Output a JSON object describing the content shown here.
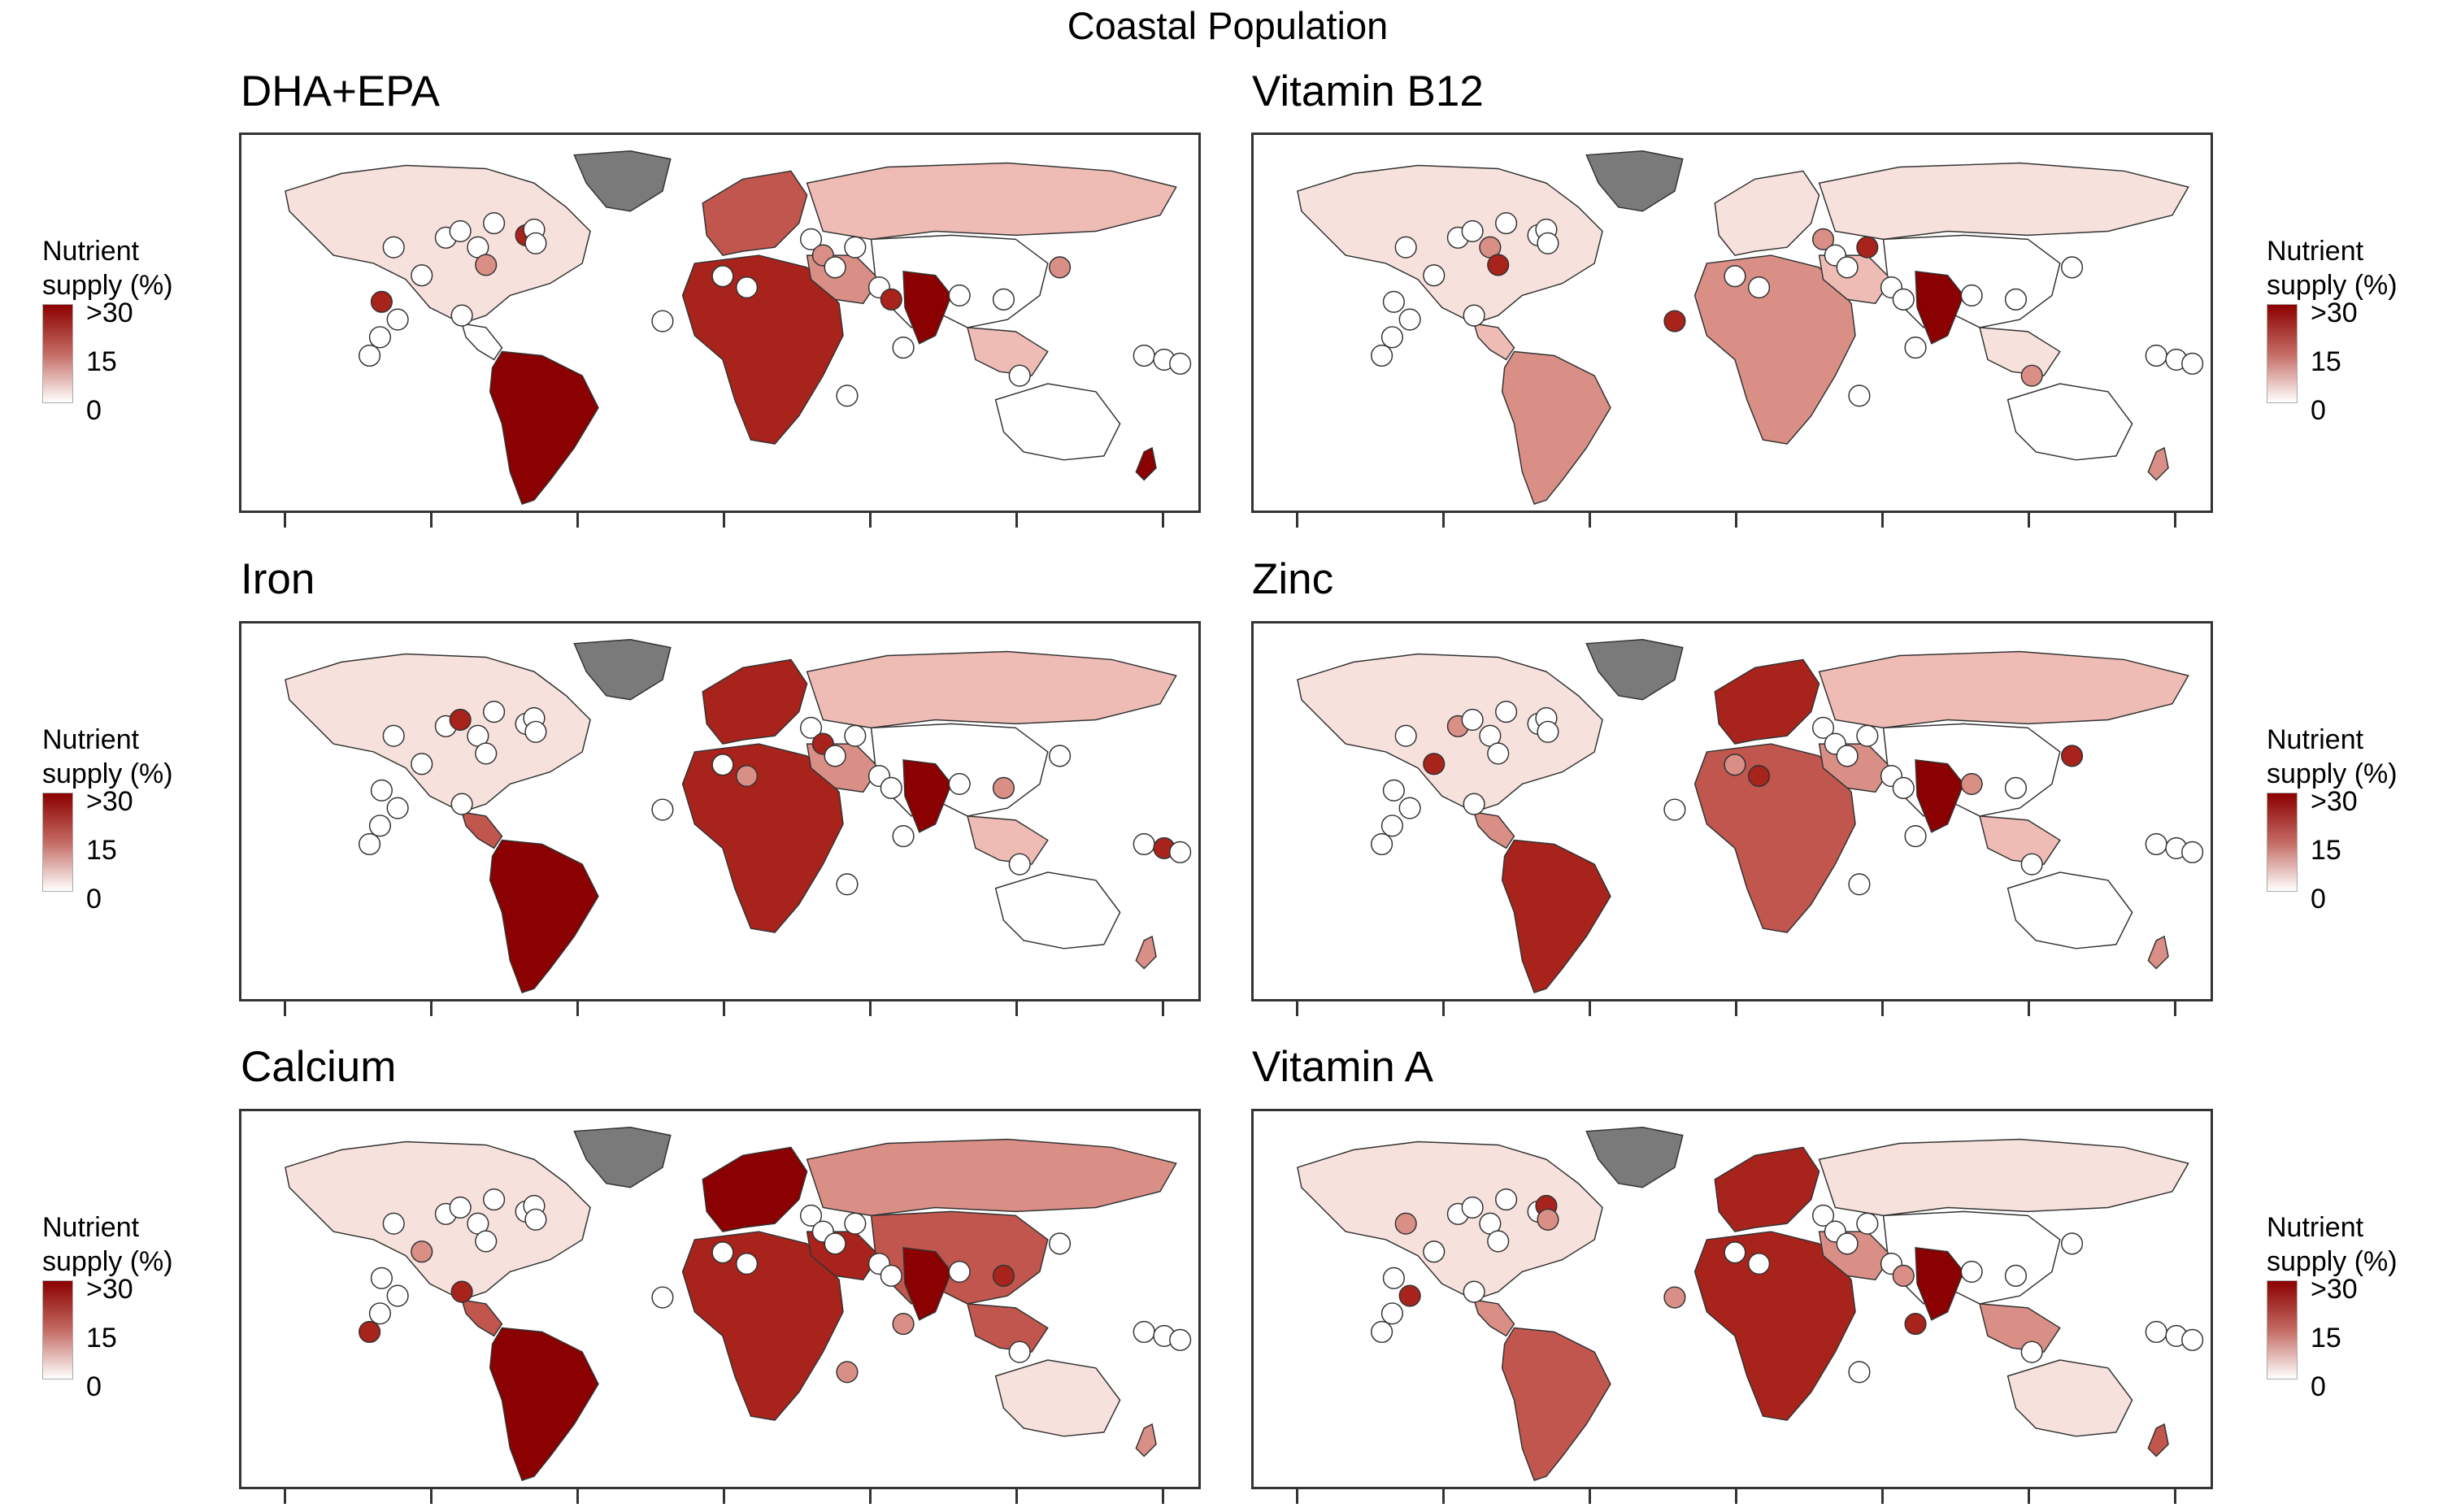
{
  "figure": {
    "title": "Coastal Population"
  },
  "legend": {
    "title_line1": "Nutrient",
    "title_line2": "supply (%)",
    "tick_high": ">30",
    "tick_mid": "15",
    "tick_low": "0",
    "scale_min": 0,
    "scale_max": 30
  },
  "colors": {
    "high": "#8b0000",
    "mid": "#c46a62",
    "low": "#ffffff",
    "no_data": "#7a7a7a",
    "border": "#333333"
  },
  "panels": [
    {
      "title": "DHA+EPA"
    },
    {
      "title": "Vitamin B12"
    },
    {
      "title": "Iron"
    },
    {
      "title": "Zinc"
    },
    {
      "title": "Calcium"
    },
    {
      "title": "Vitamin A"
    }
  ],
  "chart_data": {
    "type": "choropleth-map",
    "value": "Nutrient supply (%)",
    "scale": [
      0,
      30
    ],
    "facets": [
      "DHA+EPA",
      "Vitamin B12",
      "Iron",
      "Zinc",
      "Calcium",
      "Vitamin A"
    ],
    "no_data_color": "grey",
    "small_states": "circles"
  }
}
